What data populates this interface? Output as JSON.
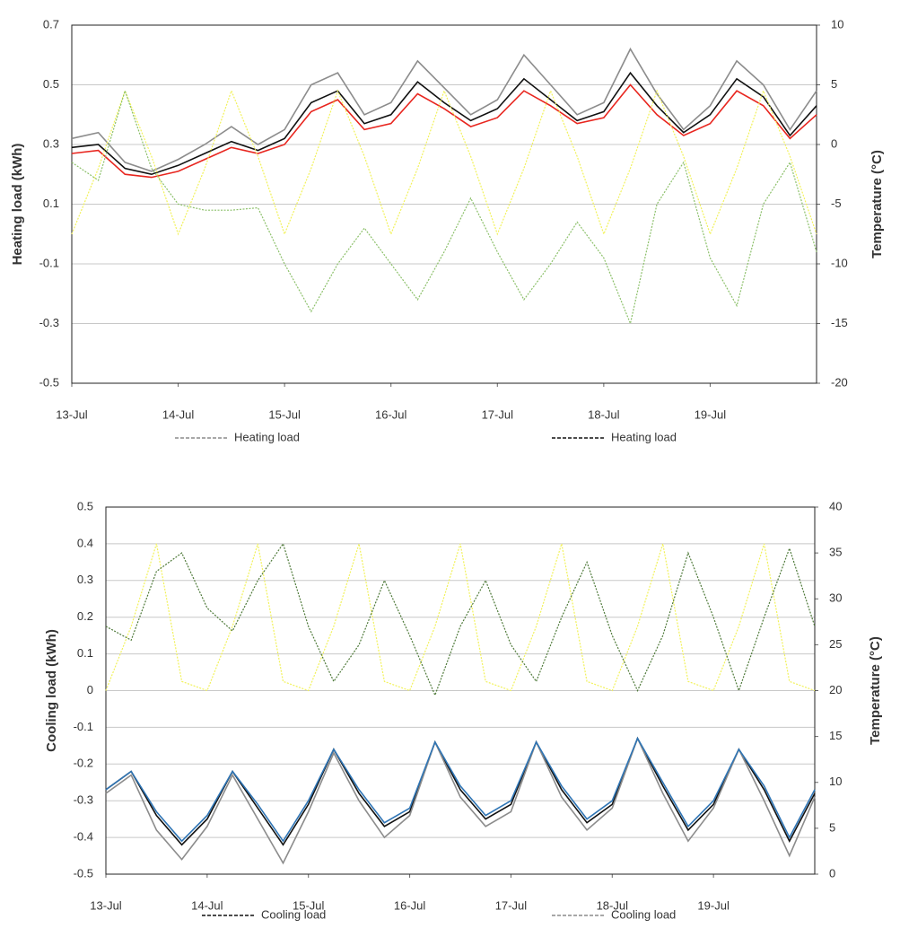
{
  "chart_data": [
    {
      "type": "line",
      "ylabel": "Heating load (kWh)",
      "y2label": "Temperature (°C)",
      "x": [
        0,
        0.25,
        0.5,
        0.75,
        1,
        1.25,
        1.5,
        1.75,
        2,
        2.25,
        2.5,
        2.75,
        3,
        3.25,
        3.5,
        3.75,
        4,
        4.25,
        4.5,
        4.75,
        5,
        5.25,
        5.5,
        5.75,
        6,
        6.25,
        6.5,
        6.75,
        7
      ],
      "xlim": [
        0,
        7
      ],
      "xticks": [
        {
          "value": 0,
          "label": "13-Jul"
        },
        {
          "value": 1,
          "label": "14-Jul"
        },
        {
          "value": 2,
          "label": "15-Jul"
        },
        {
          "value": 3,
          "label": "16-Jul"
        },
        {
          "value": 4,
          "label": "17-Jul"
        },
        {
          "value": 5,
          "label": "18-Jul"
        },
        {
          "value": 6,
          "label": "19-Jul"
        }
      ],
      "ylim": [
        -0.5,
        0.7
      ],
      "yticks": [
        -0.5,
        -0.3,
        -0.1,
        0.1,
        0.3,
        0.5,
        0.7
      ],
      "y2lim": [
        -20,
        10
      ],
      "y2ticks": [
        -20,
        -15,
        -10,
        -5,
        0,
        5,
        10
      ],
      "grid": true,
      "series": [
        {
          "name": "Heating load",
          "color": "#8c8c8c",
          "values": [
            0.32,
            0.34,
            0.24,
            0.21,
            0.25,
            0.3,
            0.36,
            0.3,
            0.35,
            0.5,
            0.54,
            0.4,
            0.44,
            0.58,
            0.49,
            0.4,
            0.45,
            0.6,
            0.5,
            0.4,
            0.44,
            0.62,
            0.47,
            0.35,
            0.43,
            0.58,
            0.5,
            0.35,
            0.48
          ]
        },
        {
          "name": "Heating load",
          "color": "#111111",
          "values": [
            0.29,
            0.3,
            0.22,
            0.2,
            0.23,
            0.27,
            0.31,
            0.28,
            0.32,
            0.44,
            0.48,
            0.37,
            0.4,
            0.51,
            0.44,
            0.38,
            0.42,
            0.52,
            0.45,
            0.38,
            0.41,
            0.54,
            0.43,
            0.34,
            0.4,
            0.52,
            0.46,
            0.33,
            0.43
          ]
        },
        {
          "color": "#e8261f",
          "values": [
            0.27,
            0.28,
            0.2,
            0.19,
            0.21,
            0.25,
            0.29,
            0.27,
            0.3,
            0.41,
            0.45,
            0.35,
            0.37,
            0.47,
            0.42,
            0.36,
            0.39,
            0.48,
            0.43,
            0.37,
            0.39,
            0.5,
            0.4,
            0.33,
            0.37,
            0.48,
            0.43,
            0.32,
            0.4
          ]
        },
        {
          "color": "#f2f25a",
          "axis": "y2",
          "values": [
            -7.5,
            -2,
            4.5,
            -1,
            -7.5,
            -2,
            4.5,
            -1,
            -7.5,
            -2,
            4.5,
            -1,
            -7.5,
            -2,
            4.5,
            -1,
            -7.5,
            -2,
            4.5,
            -1,
            -7.5,
            -2,
            4.5,
            -1,
            -7.5,
            -2,
            4.5,
            -1,
            -7.5
          ]
        },
        {
          "color": "#8cc06a",
          "axis": "y2",
          "values": [
            -1.5,
            -3,
            4.5,
            -2,
            -5,
            -5.5,
            -5.5,
            -5.3,
            -10,
            -14,
            -10,
            -7,
            -10,
            -13,
            -9,
            -4.5,
            -9,
            -13,
            -10,
            -6.5,
            -9.5,
            -15,
            -5,
            -1.5,
            -9.5,
            -13.5,
            -5,
            -1.5,
            -9
          ]
        }
      ]
    },
    {
      "type": "line",
      "ylabel": "Cooling load  (kWh)",
      "y2label": "Temperature (°C)",
      "x": [
        0,
        0.25,
        0.5,
        0.75,
        1,
        1.25,
        1.5,
        1.75,
        2,
        2.25,
        2.5,
        2.75,
        3,
        3.25,
        3.5,
        3.75,
        4,
        4.25,
        4.5,
        4.75,
        5,
        5.25,
        5.5,
        5.75,
        6,
        6.25,
        6.5,
        6.75,
        7
      ],
      "xlim": [
        0,
        7
      ],
      "xticks": [
        {
          "value": 0,
          "label": "13-Jul"
        },
        {
          "value": 1,
          "label": "14-Jul"
        },
        {
          "value": 2,
          "label": "15-Jul"
        },
        {
          "value": 3,
          "label": "16-Jul"
        },
        {
          "value": 4,
          "label": "17-Jul"
        },
        {
          "value": 5,
          "label": "18-Jul"
        },
        {
          "value": 6,
          "label": "19-Jul"
        }
      ],
      "ylim": [
        -0.5,
        0.5
      ],
      "yticks": [
        -0.5,
        -0.4,
        -0.3,
        -0.2,
        -0.1,
        0,
        0.1,
        0.2,
        0.3,
        0.4,
        0.5
      ],
      "y2lim": [
        0,
        40
      ],
      "y2ticks": [
        0,
        5,
        10,
        15,
        20,
        25,
        30,
        35,
        40
      ],
      "grid": true,
      "series": [
        {
          "name": "Cooling load",
          "color": "#111111",
          "values": [
            -0.27,
            -0.22,
            -0.34,
            -0.42,
            -0.35,
            -0.22,
            -0.32,
            -0.42,
            -0.31,
            -0.16,
            -0.28,
            -0.37,
            -0.33,
            -0.14,
            -0.27,
            -0.35,
            -0.31,
            -0.14,
            -0.27,
            -0.36,
            -0.31,
            -0.13,
            -0.26,
            -0.38,
            -0.31,
            -0.16,
            -0.27,
            -0.41,
            -0.28
          ]
        },
        {
          "name": "Cooling load",
          "color": "#8c8c8c",
          "values": [
            -0.28,
            -0.23,
            -0.38,
            -0.46,
            -0.37,
            -0.23,
            -0.35,
            -0.47,
            -0.33,
            -0.17,
            -0.3,
            -0.4,
            -0.34,
            -0.14,
            -0.29,
            -0.37,
            -0.33,
            -0.14,
            -0.29,
            -0.38,
            -0.32,
            -0.13,
            -0.28,
            -0.41,
            -0.32,
            -0.16,
            -0.3,
            -0.45,
            -0.29
          ]
        },
        {
          "color": "#2f75b5",
          "values": [
            -0.27,
            -0.22,
            -0.33,
            -0.41,
            -0.34,
            -0.22,
            -0.31,
            -0.41,
            -0.3,
            -0.16,
            -0.27,
            -0.36,
            -0.32,
            -0.14,
            -0.26,
            -0.34,
            -0.3,
            -0.14,
            -0.26,
            -0.35,
            -0.3,
            -0.13,
            -0.25,
            -0.37,
            -0.3,
            -0.16,
            -0.26,
            -0.4,
            -0.27
          ]
        },
        {
          "color": "#f2f25a",
          "axis": "y2",
          "values": [
            20,
            27,
            36,
            21,
            20,
            27,
            36,
            21,
            20,
            27,
            36,
            21,
            20,
            27,
            36,
            21,
            20,
            27,
            36,
            21,
            20,
            27,
            36,
            21,
            20,
            27,
            36,
            21,
            20
          ]
        },
        {
          "color": "#4f7a3a",
          "axis": "y2",
          "values": [
            27,
            25.5,
            33,
            35,
            29,
            26.5,
            32,
            36,
            27,
            21,
            25,
            32,
            26,
            19.5,
            27,
            32,
            25,
            21,
            28,
            34,
            26,
            20,
            26,
            35,
            28,
            20,
            28,
            35.5,
            27
          ]
        }
      ]
    }
  ]
}
